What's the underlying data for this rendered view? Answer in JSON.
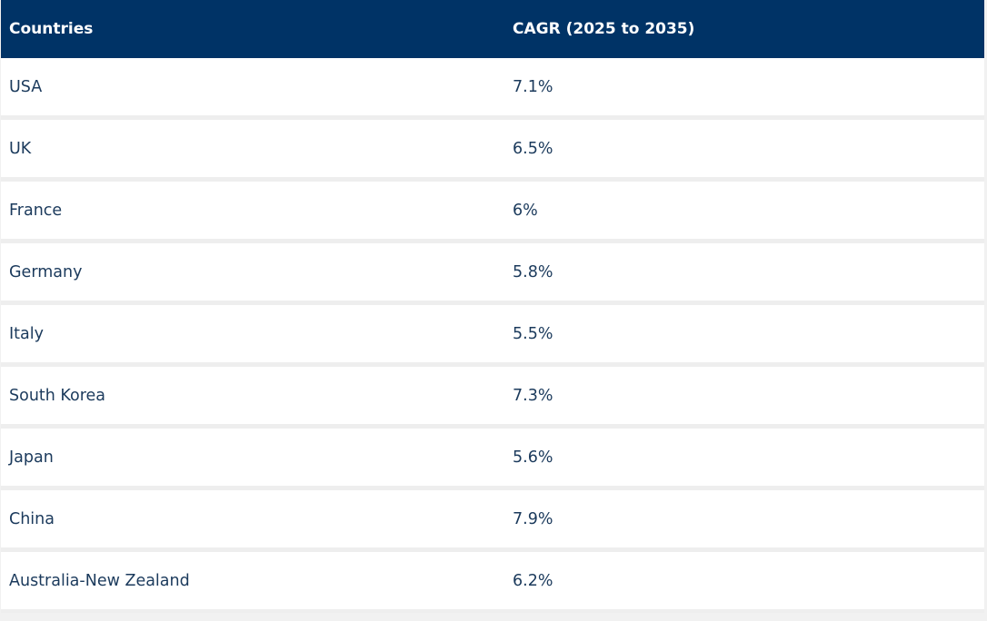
{
  "table": {
    "headers": [
      "Countries",
      "CAGR (2025 to 2035)"
    ],
    "rows": [
      {
        "country": "USA",
        "cagr": "7.1%"
      },
      {
        "country": "UK",
        "cagr": "6.5%"
      },
      {
        "country": "France",
        "cagr": "6%"
      },
      {
        "country": "Germany",
        "cagr": "5.8%"
      },
      {
        "country": "Italy",
        "cagr": "5.5%"
      },
      {
        "country": "South Korea",
        "cagr": "7.3%"
      },
      {
        "country": "Japan",
        "cagr": "5.6%"
      },
      {
        "country": "China",
        "cagr": "7.9%"
      },
      {
        "country": "Australia-New Zealand",
        "cagr": "6.2%"
      }
    ]
  },
  "colors": {
    "header_bg": "#003366",
    "header_text": "#ffffff",
    "body_text": "#1b3a5c",
    "row_separator": "#eeeeee"
  }
}
